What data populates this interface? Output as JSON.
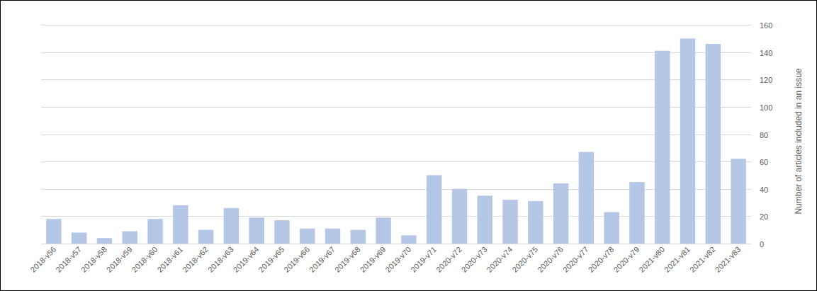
{
  "chart_data": {
    "type": "bar",
    "y_label": "Number of articles included in an issue",
    "categories": [
      "2018-v56",
      "2018-v57",
      "2018-v58",
      "2018-v59",
      "2018-v60",
      "2018-v61",
      "2018-v62",
      "2018-v63",
      "2019-v64",
      "2019-v65",
      "2019-v66",
      "2019-v67",
      "2019-v68",
      "2019-v69",
      "2019-v70",
      "2019-v71",
      "2020-v72",
      "2020-v73",
      "2020-v74",
      "2020-v75",
      "2020-v76",
      "2020-v77",
      "2020-v78",
      "2020-v79",
      "2021-v80",
      "2021-v81",
      "2021-v82",
      "2021-v83"
    ],
    "values": [
      18,
      8,
      4,
      9,
      18,
      28,
      10,
      26,
      19,
      17,
      11,
      11,
      10,
      19,
      6,
      50,
      40,
      35,
      32,
      31,
      44,
      67,
      23,
      45,
      141,
      150,
      146,
      62
    ],
    "color": "#b4c7e7",
    "ylim": [
      0,
      160
    ],
    "yticks": [
      0,
      20,
      40,
      60,
      80,
      100,
      120,
      140,
      160
    ],
    "grid": true
  }
}
